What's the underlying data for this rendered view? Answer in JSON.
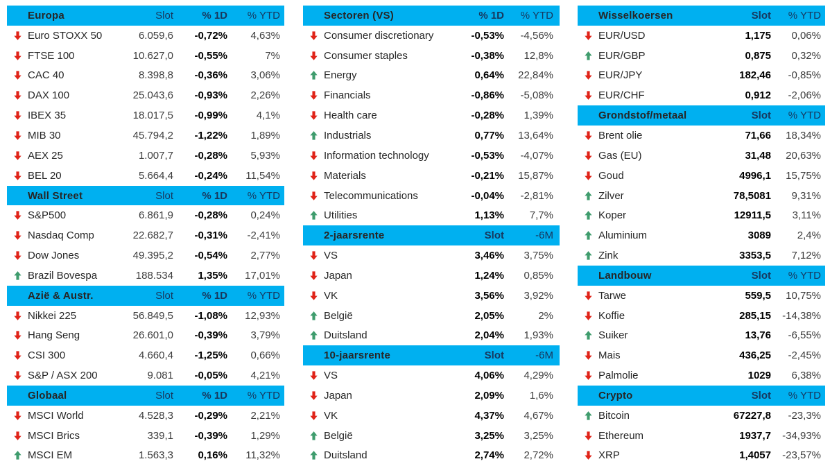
{
  "colors": {
    "header_bg": "#00b0f0",
    "header_text": "#17375d",
    "up_arrow": "#3f9c6d",
    "down_arrow": "#e02318",
    "bold_value": "#000000",
    "value_text": "#3d3d3d"
  },
  "columns": [
    {
      "tables": [
        {
          "title": "Europa",
          "cols": [
            "Slot",
            "% 1D",
            "% YTD"
          ],
          "bold_col": 1,
          "rows": [
            {
              "dir": "down",
              "name": "Euro STOXX 50",
              "values": [
                "6.059,6",
                "-0,72%",
                "4,63%"
              ]
            },
            {
              "dir": "down",
              "name": "FTSE 100",
              "values": [
                "10.627,0",
                "-0,55%",
                "7%"
              ]
            },
            {
              "dir": "down",
              "name": "CAC 40",
              "values": [
                "8.398,8",
                "-0,36%",
                "3,06%"
              ]
            },
            {
              "dir": "down",
              "name": "DAX 100",
              "values": [
                "25.043,6",
                "-0,93%",
                "2,26%"
              ]
            },
            {
              "dir": "down",
              "name": "IBEX 35",
              "values": [
                "18.017,5",
                "-0,99%",
                "4,1%"
              ]
            },
            {
              "dir": "down",
              "name": "MIB 30",
              "values": [
                "45.794,2",
                "-1,22%",
                "1,89%"
              ]
            },
            {
              "dir": "down",
              "name": "AEX 25",
              "values": [
                "1.007,7",
                "-0,28%",
                "5,93%"
              ]
            },
            {
              "dir": "down",
              "name": "BEL 20",
              "values": [
                "5.664,4",
                "-0,24%",
                "11,54%"
              ]
            }
          ]
        },
        {
          "title": "Wall Street",
          "cols": [
            "Slot",
            "% 1D",
            "% YTD"
          ],
          "bold_col": 1,
          "rows": [
            {
              "dir": "down",
              "name": "S&P500",
              "values": [
                "6.861,9",
                "-0,28%",
                "0,24%"
              ]
            },
            {
              "dir": "down",
              "name": "Nasdaq Comp",
              "values": [
                "22.682,7",
                "-0,31%",
                "-2,41%"
              ]
            },
            {
              "dir": "down",
              "name": "Dow Jones",
              "values": [
                "49.395,2",
                "-0,54%",
                "2,77%"
              ]
            },
            {
              "dir": "up",
              "name": "Brazil Bovespa",
              "values": [
                "188.534",
                "1,35%",
                "17,01%"
              ]
            }
          ]
        },
        {
          "title": "Azië & Austr.",
          "cols": [
            "Slot",
            "% 1D",
            "% YTD"
          ],
          "bold_col": 1,
          "rows": [
            {
              "dir": "down",
              "name": "Nikkei 225",
              "values": [
                "56.849,5",
                "-1,08%",
                "12,93%"
              ]
            },
            {
              "dir": "down",
              "name": "Hang Seng",
              "values": [
                "26.601,0",
                "-0,39%",
                "3,79%"
              ]
            },
            {
              "dir": "down",
              "name": "CSI 300",
              "values": [
                "4.660,4",
                "-1,25%",
                "0,66%"
              ]
            },
            {
              "dir": "down",
              "name": "S&P / ASX 200",
              "values": [
                "9.081",
                "-0,05%",
                "4,21%"
              ]
            }
          ]
        },
        {
          "title": "Globaal",
          "cols": [
            "Slot",
            "% 1D",
            "% YTD"
          ],
          "bold_col": 1,
          "rows": [
            {
              "dir": "down",
              "name": "MSCI World",
              "values": [
                "4.528,3",
                "-0,29%",
                "2,21%"
              ]
            },
            {
              "dir": "down",
              "name": "MSCI Brics",
              "values": [
                "339,1",
                "-0,39%",
                "1,29%"
              ]
            },
            {
              "dir": "up",
              "name": "MSCI EM",
              "values": [
                "1.563,3",
                "0,16%",
                "11,32%"
              ]
            }
          ]
        }
      ]
    },
    {
      "tables": [
        {
          "title": "Sectoren (VS)",
          "cols": [
            "% 1D",
            "% YTD"
          ],
          "bold_col": 0,
          "rows": [
            {
              "dir": "down",
              "name": "Consumer discretionary",
              "values": [
                "-0,53%",
                "-4,56%"
              ]
            },
            {
              "dir": "down",
              "name": "Consumer staples",
              "values": [
                "-0,38%",
                "12,8%"
              ]
            },
            {
              "dir": "up",
              "name": "Energy",
              "values": [
                "0,64%",
                "22,84%"
              ]
            },
            {
              "dir": "down",
              "name": "Financials",
              "values": [
                "-0,86%",
                "-5,08%"
              ]
            },
            {
              "dir": "down",
              "name": "Health care",
              "values": [
                "-0,28%",
                "1,39%"
              ]
            },
            {
              "dir": "up",
              "name": "Industrials",
              "values": [
                "0,77%",
                "13,64%"
              ]
            },
            {
              "dir": "down",
              "name": "Information technology",
              "values": [
                "-0,53%",
                "-4,07%"
              ]
            },
            {
              "dir": "down",
              "name": "Materials",
              "values": [
                "-0,21%",
                "15,87%"
              ]
            },
            {
              "dir": "down",
              "name": "Telecommunications",
              "values": [
                "-0,04%",
                "-2,81%"
              ]
            },
            {
              "dir": "up",
              "name": "Utilities",
              "values": [
                "1,13%",
                "7,7%"
              ]
            }
          ]
        },
        {
          "title": "2-jaarsrente",
          "cols": [
            "Slot",
            "-6M"
          ],
          "bold_col": 0,
          "rows": [
            {
              "dir": "down",
              "name": "VS",
              "values": [
                "3,46%",
                "3,75%"
              ]
            },
            {
              "dir": "down",
              "name": "Japan",
              "values": [
                "1,24%",
                "0,85%"
              ]
            },
            {
              "dir": "down",
              "name": "VK",
              "values": [
                "3,56%",
                "3,92%"
              ]
            },
            {
              "dir": "up",
              "name": "België",
              "values": [
                "2,05%",
                "2%"
              ]
            },
            {
              "dir": "up",
              "name": "Duitsland",
              "values": [
                "2,04%",
                "1,93%"
              ]
            }
          ]
        },
        {
          "title": "10-jaarsrente",
          "cols": [
            "Slot",
            "-6M"
          ],
          "bold_col": 0,
          "rows": [
            {
              "dir": "down",
              "name": "VS",
              "values": [
                "4,06%",
                "4,29%"
              ]
            },
            {
              "dir": "down",
              "name": "Japan",
              "values": [
                "2,09%",
                "1,6%"
              ]
            },
            {
              "dir": "down",
              "name": "VK",
              "values": [
                "4,37%",
                "4,67%"
              ]
            },
            {
              "dir": "up",
              "name": "België",
              "values": [
                "3,25%",
                "3,25%"
              ]
            },
            {
              "dir": "up",
              "name": "Duitsland",
              "values": [
                "2,74%",
                "2,72%"
              ]
            }
          ]
        }
      ]
    },
    {
      "tables": [
        {
          "title": "Wisselkoersen",
          "cols": [
            "Slot",
            "% YTD"
          ],
          "bold_col": 0,
          "rows": [
            {
              "dir": "down",
              "name": "EUR/USD",
              "values": [
                "1,175",
                "0,06%"
              ]
            },
            {
              "dir": "up",
              "name": "EUR/GBP",
              "values": [
                "0,875",
                "0,32%"
              ]
            },
            {
              "dir": "down",
              "name": "EUR/JPY",
              "values": [
                "182,46",
                "-0,85%"
              ]
            },
            {
              "dir": "down",
              "name": "EUR/CHF",
              "values": [
                "0,912",
                "-2,06%"
              ]
            }
          ]
        },
        {
          "title": "Grondstof/metaal",
          "cols": [
            "Slot",
            "% YTD"
          ],
          "bold_col": 0,
          "rows": [
            {
              "dir": "down",
              "name": "Brent olie",
              "values": [
                "71,66",
                "18,34%"
              ]
            },
            {
              "dir": "down",
              "name": "Gas (EU)",
              "values": [
                "31,48",
                "20,63%"
              ]
            },
            {
              "dir": "down",
              "name": "Goud",
              "values": [
                "4996,1",
                "15,75%"
              ]
            },
            {
              "dir": "up",
              "name": "Zilver",
              "values": [
                "78,5081",
                "9,31%"
              ]
            },
            {
              "dir": "up",
              "name": "Koper",
              "values": [
                "12911,5",
                "3,11%"
              ]
            },
            {
              "dir": "up",
              "name": "Aluminium",
              "values": [
                "3089",
                "2,4%"
              ]
            },
            {
              "dir": "up",
              "name": "Zink",
              "values": [
                "3353,5",
                "7,12%"
              ]
            }
          ]
        },
        {
          "title": "Landbouw",
          "cols": [
            "Slot",
            "% YTD"
          ],
          "bold_col": 0,
          "rows": [
            {
              "dir": "down",
              "name": "Tarwe",
              "values": [
                "559,5",
                "10,75%"
              ]
            },
            {
              "dir": "down",
              "name": "Koffie",
              "values": [
                "285,15",
                "-14,38%"
              ]
            },
            {
              "dir": "up",
              "name": "Suiker",
              "values": [
                "13,76",
                "-6,55%"
              ]
            },
            {
              "dir": "down",
              "name": "Mais",
              "values": [
                "436,25",
                "-2,45%"
              ]
            },
            {
              "dir": "down",
              "name": "Palmolie",
              "values": [
                "1029",
                "6,38%"
              ]
            }
          ]
        },
        {
          "title": "Crypto",
          "cols": [
            "Slot",
            "% YTD"
          ],
          "bold_col": 0,
          "rows": [
            {
              "dir": "up",
              "name": "Bitcoin",
              "values": [
                "67227,8",
                "-23,3%"
              ]
            },
            {
              "dir": "down",
              "name": "Ethereum",
              "values": [
                "1937,7",
                "-34,93%"
              ]
            },
            {
              "dir": "down",
              "name": "XRP",
              "values": [
                "1,4057",
                "-23,57%"
              ]
            }
          ]
        }
      ]
    }
  ]
}
